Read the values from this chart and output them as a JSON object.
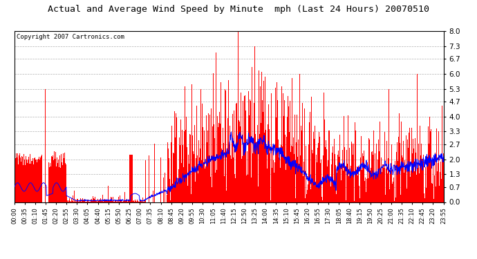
{
  "title": "Actual and Average Wind Speed by Minute  mph (Last 24 Hours) 20070510",
  "copyright_text": "Copyright 2007 Cartronics.com",
  "background_color": "#ffffff",
  "plot_bg_color": "#ffffff",
  "grid_color": "#b0b0b0",
  "bar_color": "#ff0000",
  "line_color": "#0000ff",
  "ylim": [
    0.0,
    8.0
  ],
  "yticks": [
    0.0,
    0.7,
    1.3,
    2.0,
    2.7,
    3.3,
    4.0,
    4.7,
    5.3,
    6.0,
    6.7,
    7.3,
    8.0
  ],
  "x_tick_labels": [
    "00:00",
    "00:35",
    "01:10",
    "01:45",
    "02:20",
    "02:55",
    "03:30",
    "04:05",
    "04:40",
    "05:15",
    "05:50",
    "06:25",
    "07:00",
    "07:35",
    "08:10",
    "08:45",
    "09:20",
    "09:55",
    "10:30",
    "11:05",
    "11:40",
    "12:15",
    "12:50",
    "13:25",
    "14:00",
    "14:35",
    "15:10",
    "15:45",
    "16:20",
    "16:55",
    "17:30",
    "18:05",
    "18:40",
    "19:15",
    "19:50",
    "20:25",
    "21:00",
    "21:35",
    "22:10",
    "22:45",
    "23:20",
    "23:55"
  ],
  "n_minutes": 1440,
  "figwidth": 6.9,
  "figheight": 3.75,
  "dpi": 100
}
